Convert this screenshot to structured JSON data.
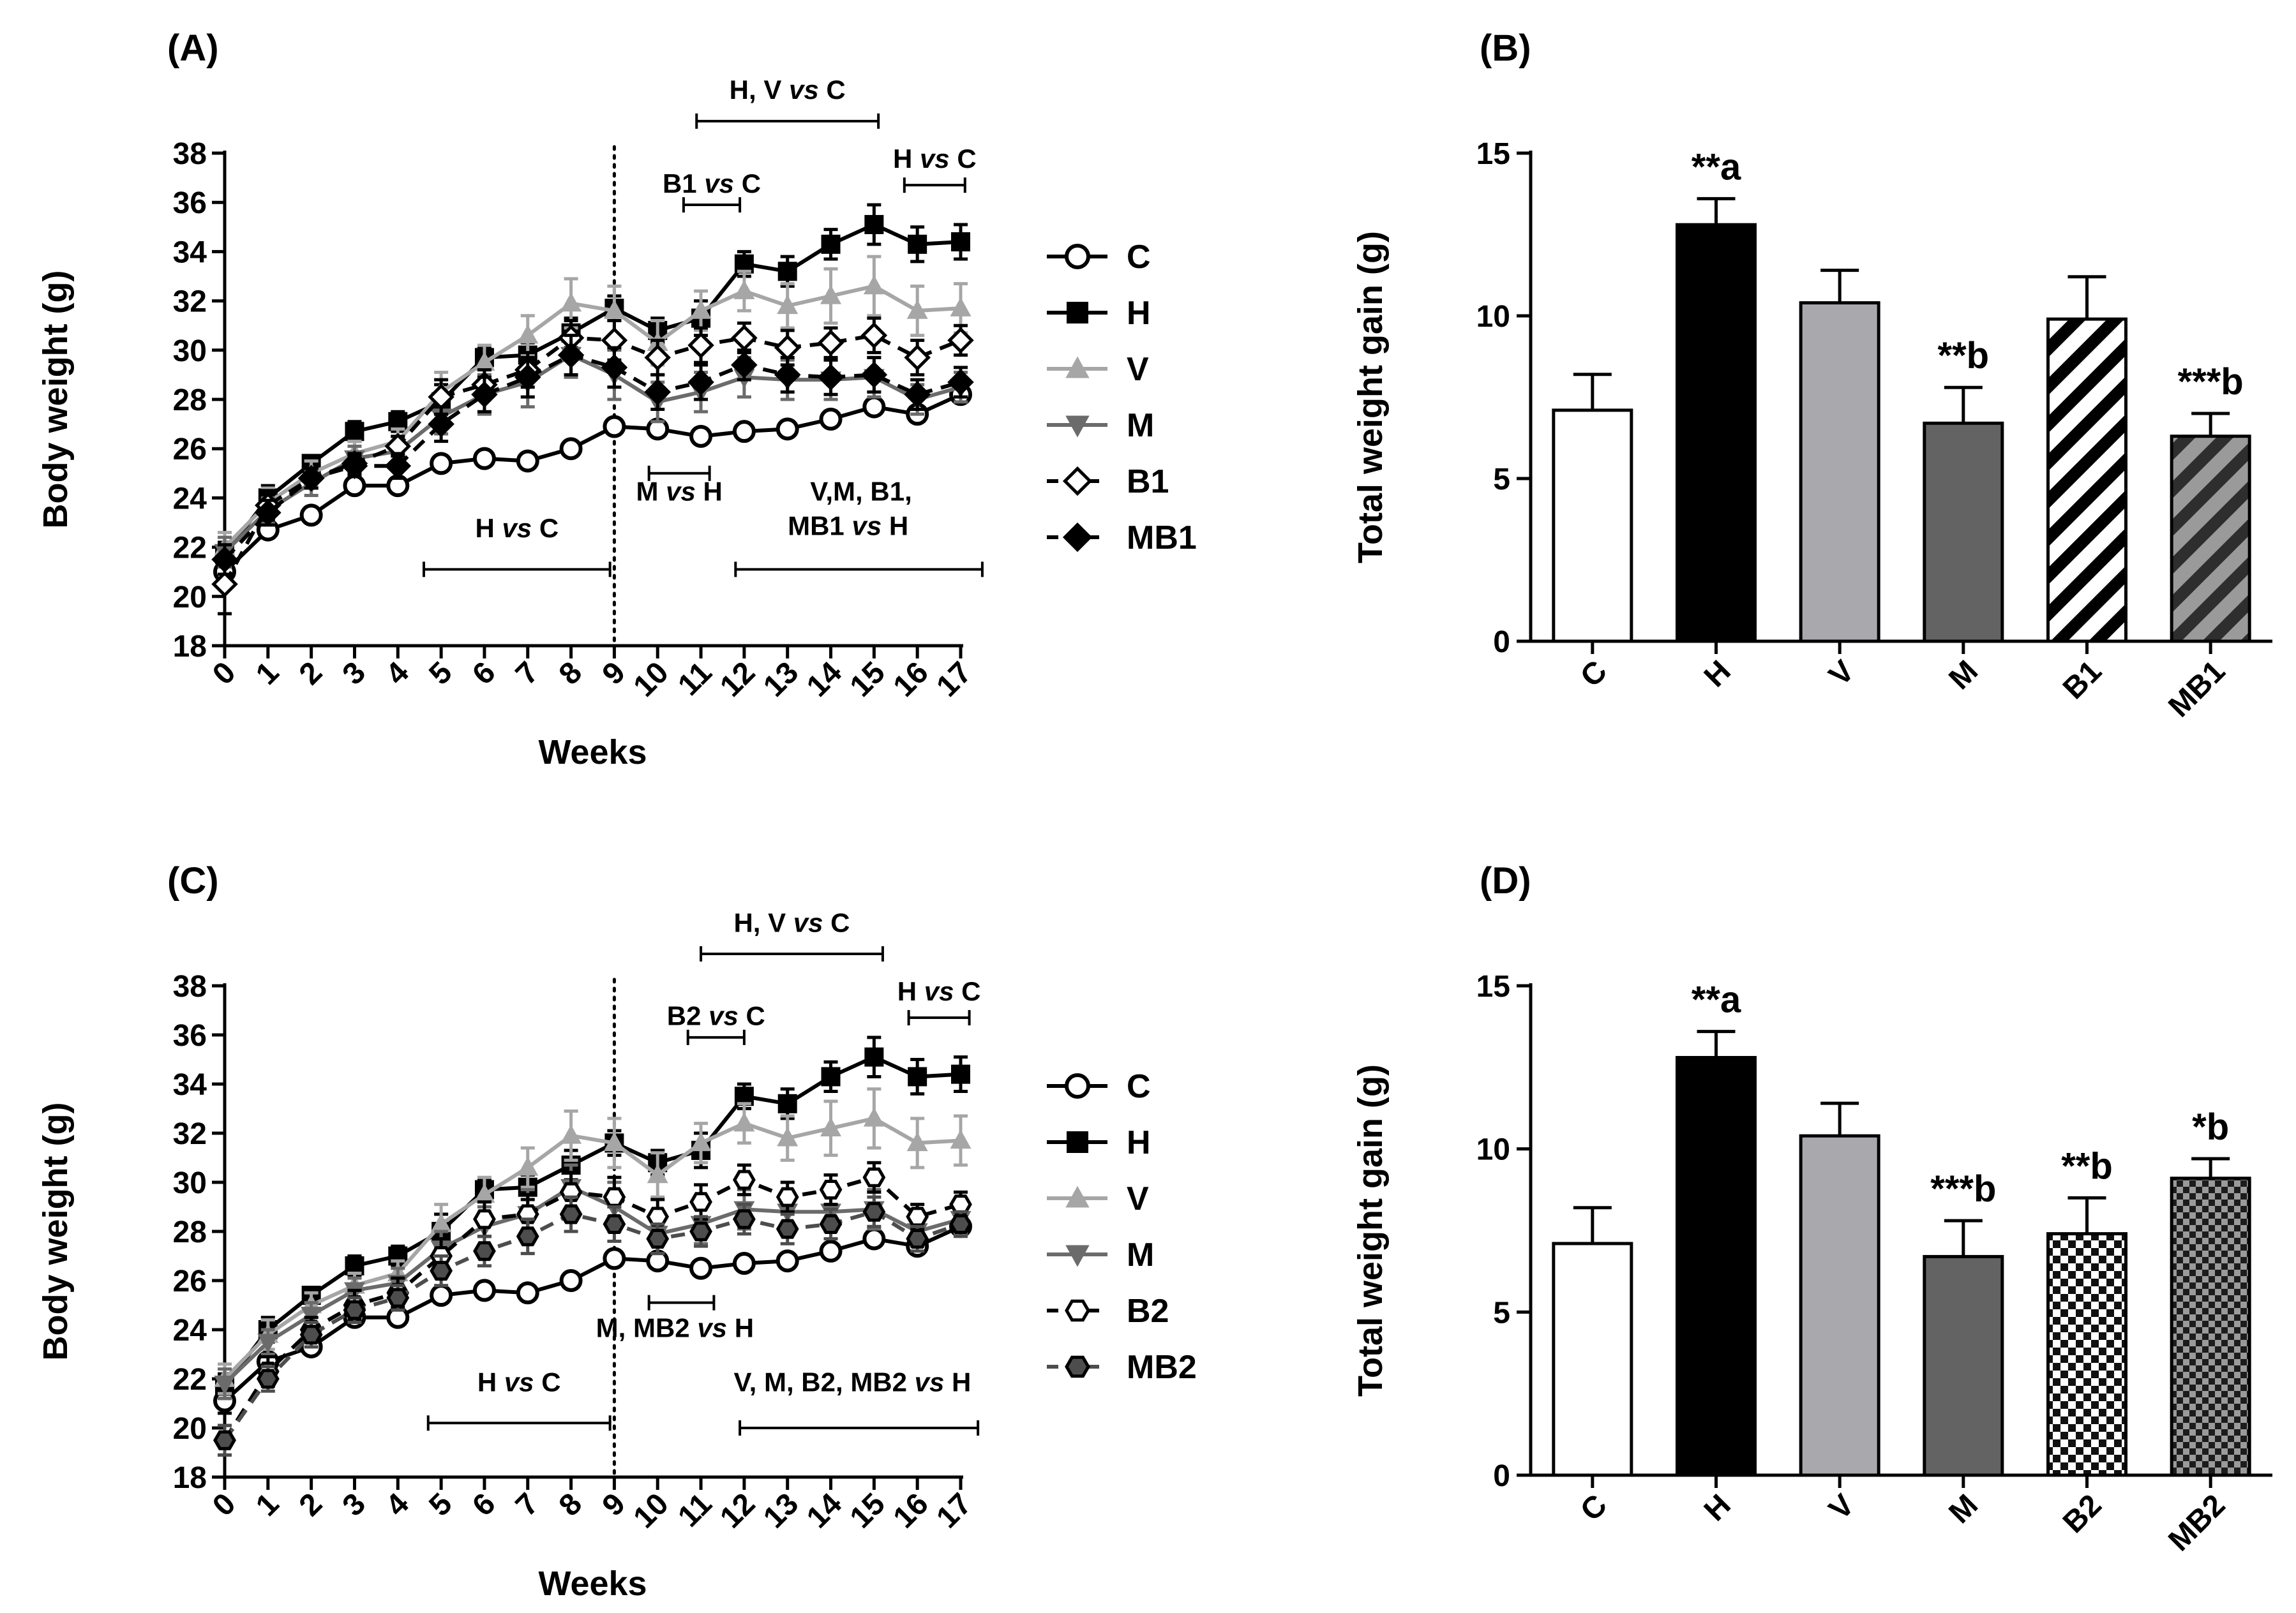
{
  "chart_data": [
    {
      "panel": "(A)",
      "type": "line",
      "xlabel": "Weeks",
      "ylabel": "Body weight (g)",
      "ylim": [
        18,
        38
      ],
      "yticks": [
        18,
        20,
        22,
        24,
        26,
        28,
        30,
        32,
        34,
        36,
        38
      ],
      "x": [
        0,
        1,
        2,
        3,
        4,
        5,
        6,
        7,
        8,
        9,
        10,
        11,
        12,
        13,
        14,
        15,
        16,
        17
      ],
      "x_tick_labels": [
        "0",
        "1",
        "2",
        "3",
        "4",
        "5",
        "6",
        "7",
        "8",
        "9",
        "10",
        "11",
        "12",
        "13",
        "14",
        "15",
        "16",
        "17"
      ],
      "vline_x": 9,
      "series": [
        {
          "name": "C",
          "color": "#000000",
          "marker": "circle-open",
          "dash": "solid",
          "values": [
            21.0,
            22.7,
            23.3,
            24.5,
            24.5,
            25.4,
            25.6,
            25.5,
            26.0,
            26.9,
            26.8,
            26.5,
            26.7,
            26.8,
            27.2,
            27.7,
            27.4,
            28.2
          ],
          "errors": [
            0.5,
            0.3,
            0.3,
            0.3,
            0.3,
            0.2,
            0.2,
            0.2,
            0.2,
            0.3,
            0.3,
            0.3,
            0.3,
            0.3,
            0.3,
            0.3,
            0.3,
            0.3
          ]
        },
        {
          "name": "H",
          "color": "#000000",
          "marker": "square",
          "dash": "solid",
          "values": [
            21.7,
            24.0,
            25.4,
            26.7,
            27.1,
            27.9,
            29.7,
            29.8,
            30.7,
            31.7,
            30.8,
            31.3,
            33.5,
            33.2,
            34.3,
            35.1,
            34.3,
            34.4
          ],
          "errors": [
            0.5,
            0.5,
            0.3,
            0.4,
            0.4,
            0.7,
            0.4,
            0.5,
            0.6,
            0.5,
            0.5,
            0.7,
            0.5,
            0.6,
            0.6,
            0.8,
            0.7,
            0.7
          ]
        },
        {
          "name": "V",
          "color": "#a6a6a6",
          "marker": "triangle-up",
          "dash": "solid",
          "values": [
            22.0,
            23.8,
            25.0,
            25.8,
            26.3,
            28.3,
            29.5,
            30.6,
            31.9,
            31.6,
            30.3,
            31.6,
            32.4,
            31.8,
            32.2,
            32.6,
            31.6,
            31.7
          ],
          "errors": [
            0.6,
            0.6,
            0.5,
            0.5,
            0.5,
            0.8,
            0.7,
            0.8,
            1.0,
            1.0,
            0.9,
            0.8,
            0.8,
            0.9,
            1.1,
            1.2,
            1.0,
            1.0
          ]
        },
        {
          "name": "M",
          "color": "#6b6b6b",
          "marker": "triangle-down",
          "dash": "solid",
          "values": [
            21.8,
            23.5,
            24.6,
            25.6,
            25.9,
            27.3,
            28.2,
            28.7,
            29.8,
            29.0,
            27.9,
            28.3,
            28.9,
            28.8,
            28.8,
            28.9,
            28.0,
            28.5
          ],
          "errors": [
            0.6,
            0.5,
            0.5,
            0.5,
            0.6,
            0.7,
            0.8,
            1.0,
            0.9,
            1.0,
            0.8,
            0.8,
            0.8,
            0.8,
            0.8,
            0.8,
            0.6,
            0.6
          ]
        },
        {
          "name": "B1",
          "color": "#000000",
          "marker": "diamond-open",
          "dash": "dashed",
          "values": [
            20.5,
            23.7,
            24.8,
            25.4,
            26.1,
            28.1,
            28.6,
            29.2,
            30.5,
            30.4,
            29.7,
            30.2,
            30.5,
            30.1,
            30.3,
            30.6,
            29.7,
            30.4
          ],
          "errors": [
            1.2,
            0.6,
            0.4,
            0.4,
            0.4,
            0.7,
            0.6,
            0.7,
            0.7,
            0.8,
            0.7,
            0.7,
            0.6,
            0.7,
            0.6,
            0.7,
            0.7,
            0.6
          ]
        },
        {
          "name": "MB1",
          "color": "#000000",
          "marker": "diamond",
          "dash": "dashed",
          "values": [
            21.5,
            23.4,
            24.8,
            25.3,
            25.3,
            27.0,
            28.2,
            28.9,
            29.8,
            29.3,
            28.3,
            28.7,
            29.4,
            29.0,
            28.9,
            29.0,
            28.2,
            28.7
          ],
          "errors": [
            0.6,
            0.5,
            0.4,
            0.4,
            0.5,
            0.7,
            0.7,
            0.8,
            0.8,
            0.8,
            0.7,
            0.7,
            0.6,
            0.7,
            0.7,
            0.7,
            0.6,
            0.6
          ]
        }
      ],
      "annotations": [
        {
          "text_parts": [
            "H, V ",
            "vs",
            " C"
          ],
          "x_start": 10.9,
          "x_end": 15.1,
          "y": 39.3,
          "label_y": 40.2
        },
        {
          "text_parts": [
            "B1 ",
            "vs",
            " C"
          ],
          "x_start": 10.6,
          "x_end": 11.9,
          "y": 35.9,
          "label_y": 36.4
        },
        {
          "text_parts": [
            "H ",
            "vs",
            " C"
          ],
          "x_start": 15.7,
          "x_end": 17.1,
          "y": 36.7,
          "label_y": 37.4
        },
        {
          "text_parts": [
            "M ",
            "vs",
            " H"
          ],
          "x_start": 9.8,
          "x_end": 11.2,
          "y": 25.0,
          "label_y": 23.9
        },
        {
          "text_parts": [
            "H ",
            "vs",
            " C"
          ],
          "x_start": 4.6,
          "x_end": 8.9,
          "y": 21.1,
          "label_y": 22.4
        },
        {
          "text_parts": [
            "V,M, B1,"
          ],
          "x_start": 11.8,
          "x_end": 17.5,
          "y": 21.1,
          "label_y": 23.9,
          "label_x": 14.7
        },
        {
          "text_parts": [
            "MB1 ",
            "vs",
            " H"
          ],
          "label_x": 14.4,
          "label_y": 22.5
        }
      ]
    },
    {
      "panel": "(B)",
      "type": "bar",
      "xlabel": "",
      "ylabel": "Total weight gain (g)",
      "ylim": [
        0,
        15
      ],
      "yticks": [
        0,
        5,
        10,
        15
      ],
      "categories": [
        "C",
        "H",
        "V",
        "M",
        "B1",
        "MB1"
      ],
      "values": [
        7.1,
        12.8,
        10.4,
        6.7,
        9.9,
        6.3
      ],
      "errors": [
        1.1,
        0.8,
        1.0,
        1.1,
        1.3,
        0.7
      ],
      "fills": [
        "white",
        "black",
        "lightgray",
        "darkgray",
        "diagonal-black",
        "diagonal-gray"
      ],
      "labels": [
        "",
        "**a",
        "",
        "**b",
        "",
        "***b"
      ]
    },
    {
      "panel": "(C)",
      "type": "line",
      "xlabel": "Weeks",
      "ylabel": "Body weight (g)",
      "ylim": [
        18,
        38
      ],
      "yticks": [
        18,
        20,
        22,
        24,
        26,
        28,
        30,
        32,
        34,
        36,
        38
      ],
      "x": [
        0,
        1,
        2,
        3,
        4,
        5,
        6,
        7,
        8,
        9,
        10,
        11,
        12,
        13,
        14,
        15,
        16,
        17
      ],
      "x_tick_labels": [
        "0",
        "1",
        "2",
        "3",
        "4",
        "5",
        "6",
        "7",
        "8",
        "9",
        "10",
        "11",
        "12",
        "13",
        "14",
        "15",
        "16",
        "17"
      ],
      "vline_x": 9,
      "series": [
        {
          "name": "C",
          "color": "#000000",
          "marker": "circle-open",
          "dash": "solid",
          "values": [
            21.1,
            22.7,
            23.3,
            24.5,
            24.5,
            25.4,
            25.6,
            25.5,
            26.0,
            26.9,
            26.8,
            26.5,
            26.7,
            26.8,
            27.2,
            27.7,
            27.4,
            28.2
          ],
          "errors": [
            0.5,
            0.3,
            0.3,
            0.3,
            0.3,
            0.2,
            0.2,
            0.2,
            0.2,
            0.3,
            0.3,
            0.3,
            0.3,
            0.3,
            0.3,
            0.3,
            0.3,
            0.3
          ]
        },
        {
          "name": "H",
          "color": "#000000",
          "marker": "square",
          "dash": "solid",
          "values": [
            21.7,
            24.0,
            25.4,
            26.6,
            27.0,
            28.0,
            29.7,
            29.8,
            30.7,
            31.6,
            30.8,
            31.3,
            33.5,
            33.2,
            34.3,
            35.1,
            34.3,
            34.4
          ],
          "errors": [
            0.5,
            0.5,
            0.3,
            0.4,
            0.4,
            0.7,
            0.4,
            0.5,
            0.6,
            0.5,
            0.5,
            0.7,
            0.5,
            0.6,
            0.6,
            0.8,
            0.7,
            0.7
          ]
        },
        {
          "name": "V",
          "color": "#a6a6a6",
          "marker": "triangle-up",
          "dash": "solid",
          "values": [
            22.0,
            23.8,
            25.0,
            25.8,
            26.3,
            28.3,
            29.5,
            30.6,
            31.9,
            31.6,
            30.3,
            31.6,
            32.4,
            31.8,
            32.2,
            32.6,
            31.6,
            31.7
          ],
          "errors": [
            0.6,
            0.6,
            0.5,
            0.5,
            0.5,
            0.8,
            0.7,
            0.8,
            1.0,
            1.0,
            0.9,
            0.8,
            0.8,
            0.9,
            1.1,
            1.2,
            1.0,
            1.0
          ]
        },
        {
          "name": "M",
          "color": "#6b6b6b",
          "marker": "triangle-down",
          "dash": "solid",
          "values": [
            21.8,
            23.5,
            24.6,
            25.6,
            25.9,
            27.3,
            28.2,
            28.7,
            29.8,
            29.0,
            27.9,
            28.3,
            28.9,
            28.8,
            28.8,
            28.9,
            28.0,
            28.5
          ],
          "errors": [
            0.6,
            0.5,
            0.5,
            0.5,
            0.6,
            0.7,
            0.8,
            1.0,
            0.9,
            1.0,
            0.8,
            0.8,
            0.8,
            0.8,
            0.8,
            0.8,
            0.6,
            0.6
          ]
        },
        {
          "name": "B2",
          "color": "#000000",
          "marker": "hexagon-open",
          "dash": "dashed",
          "values": [
            19.5,
            22.3,
            24.0,
            25.0,
            25.5,
            27.0,
            28.5,
            28.7,
            29.6,
            29.4,
            28.6,
            29.2,
            30.1,
            29.4,
            29.7,
            30.2,
            28.6,
            29.1
          ],
          "errors": [
            0.6,
            0.6,
            0.5,
            0.6,
            0.6,
            0.7,
            0.7,
            0.8,
            0.8,
            0.8,
            0.7,
            0.7,
            0.6,
            0.6,
            0.6,
            0.6,
            0.5,
            0.5
          ]
        },
        {
          "name": "MB2",
          "color": "#4d4d4d",
          "marker": "hexagon",
          "dash": "dashed",
          "values": [
            19.5,
            22.0,
            23.8,
            24.8,
            25.3,
            26.4,
            27.2,
            27.8,
            28.7,
            28.3,
            27.7,
            28.0,
            28.5,
            28.1,
            28.3,
            28.8,
            27.7,
            28.3
          ],
          "errors": [
            0.6,
            0.5,
            0.5,
            0.5,
            0.5,
            0.6,
            0.6,
            0.7,
            0.7,
            0.7,
            0.6,
            0.6,
            0.6,
            0.6,
            0.6,
            0.6,
            0.5,
            0.5
          ]
        }
      ],
      "annotations": [
        {
          "text_parts": [
            "H, V ",
            "vs",
            " C"
          ],
          "x_start": 11.0,
          "x_end": 15.2,
          "y": 39.3,
          "label_y": 40.2
        },
        {
          "text_parts": [
            "B2 ",
            "vs",
            " C"
          ],
          "x_start": 10.7,
          "x_end": 12.0,
          "y": 35.9,
          "label_y": 36.4
        },
        {
          "text_parts": [
            "H ",
            "vs",
            " C"
          ],
          "x_start": 15.8,
          "x_end": 17.2,
          "y": 36.7,
          "label_y": 37.4
        },
        {
          "text_parts": [
            "M, MB2 ",
            "vs",
            " H"
          ],
          "x_start": 9.8,
          "x_end": 11.3,
          "y": 25.1,
          "label_y": 23.7,
          "label_x": 10.4
        },
        {
          "text_parts": [
            "H ",
            "vs",
            " C"
          ],
          "x_start": 4.7,
          "x_end": 8.9,
          "y": 20.2,
          "label_y": 21.5
        },
        {
          "text_parts": [
            "V, M, B2, MB2 ",
            "vs",
            " H"
          ],
          "x_start": 11.9,
          "x_end": 17.4,
          "y": 20.0,
          "label_y": 21.5,
          "label_x": 14.5
        }
      ]
    },
    {
      "panel": "(D)",
      "type": "bar",
      "xlabel": "",
      "ylabel": "Total weight gain (g)",
      "ylim": [
        0,
        15
      ],
      "yticks": [
        0,
        5,
        10,
        15
      ],
      "categories": [
        "C",
        "H",
        "V",
        "M",
        "B2",
        "MB2"
      ],
      "values": [
        7.1,
        12.8,
        10.4,
        6.7,
        7.4,
        9.1
      ],
      "errors": [
        1.1,
        0.8,
        1.0,
        1.1,
        1.1,
        0.6
      ],
      "fills": [
        "white",
        "black",
        "lightgray",
        "darkgray",
        "checker-light",
        "checker-dark"
      ],
      "labels": [
        "",
        "**a",
        "",
        "***b",
        "**b",
        "*b"
      ]
    }
  ]
}
